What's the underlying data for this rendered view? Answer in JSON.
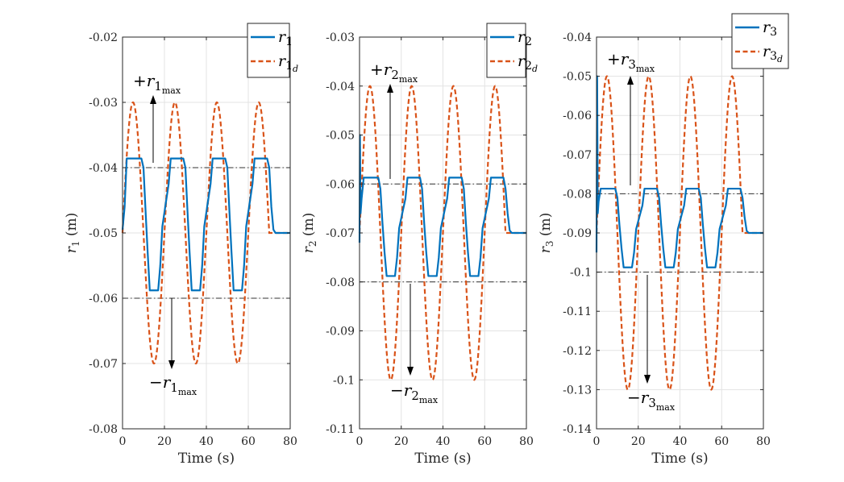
{
  "chart_data": [
    {
      "type": "line",
      "xlabel": "Time (s)",
      "ylabel": "r_1 (m)",
      "ylabel_var": "r",
      "ylabel_sub": "1",
      "ylabel_unit": "(m)",
      "xlim": [
        0,
        80
      ],
      "ylim": [
        -0.08,
        -0.02
      ],
      "xticks": [
        0,
        20,
        40,
        60,
        80
      ],
      "xtick_labels": [
        "0",
        "20",
        "40",
        "60",
        "80"
      ],
      "yticks": [
        -0.08,
        -0.07,
        -0.06,
        -0.05,
        -0.04,
        -0.03,
        -0.02
      ],
      "ytick_labels": [
        "-0.08",
        "-0.07",
        "-0.06",
        "-0.05",
        "-0.04",
        "-0.03",
        "-0.02"
      ],
      "grid": true,
      "legend_position": "top-right",
      "legend": [
        {
          "var": "r",
          "sub": "1",
          "subsub": "",
          "color": "#0072BD",
          "style": "solid"
        },
        {
          "var": "r",
          "sub": "1",
          "subsub": "d",
          "color": "#D95319",
          "style": "dashed"
        }
      ],
      "limits": {
        "upper": -0.04,
        "lower": -0.06
      },
      "annotations": [
        {
          "sign": "+",
          "var": "r",
          "sub": "1",
          "subsub": "max"
        },
        {
          "sign": "−",
          "var": "r",
          "sub": "1",
          "subsub": "max"
        }
      ],
      "series": [
        {
          "name": "r1",
          "color": "#0072BD",
          "style": "solid",
          "x": [
            0,
            1,
            2,
            9,
            10,
            11,
            12,
            13,
            17,
            18,
            19,
            22,
            23,
            24,
            29,
            30,
            31,
            32,
            33,
            37,
            38,
            39,
            42,
            43,
            44,
            49,
            50,
            51,
            52,
            53,
            57,
            58,
            59,
            62,
            63,
            64,
            69,
            70,
            71,
            72,
            73,
            80
          ],
          "y": [
            -0.0495,
            -0.046,
            -0.0386,
            -0.0386,
            -0.04,
            -0.0467,
            -0.053,
            -0.0588,
            -0.0588,
            -0.055,
            -0.049,
            -0.0425,
            -0.0386,
            -0.0386,
            -0.0386,
            -0.04,
            -0.0467,
            -0.053,
            -0.0588,
            -0.0588,
            -0.055,
            -0.049,
            -0.0425,
            -0.0386,
            -0.0386,
            -0.0386,
            -0.04,
            -0.0467,
            -0.053,
            -0.0588,
            -0.0588,
            -0.055,
            -0.049,
            -0.0425,
            -0.0386,
            -0.0386,
            -0.0386,
            -0.04,
            -0.046,
            -0.0495,
            -0.05,
            -0.05
          ]
        },
        {
          "name": "r1d",
          "color": "#D95319",
          "style": "dashed",
          "fn": {
            "center": -0.05,
            "amplitude": 0.02,
            "period": 20,
            "phase_max_at": 5,
            "t_end": 70,
            "final": -0.05
          }
        }
      ]
    },
    {
      "type": "line",
      "xlabel": "Time (s)",
      "ylabel": "r_2 (m)",
      "ylabel_var": "r",
      "ylabel_sub": "2",
      "ylabel_unit": "(m)",
      "xlim": [
        0,
        80
      ],
      "ylim": [
        -0.11,
        -0.03
      ],
      "xticks": [
        0,
        20,
        40,
        60,
        80
      ],
      "xtick_labels": [
        "0",
        "20",
        "40",
        "60",
        "80"
      ],
      "yticks": [
        -0.11,
        -0.1,
        -0.09,
        -0.08,
        -0.07,
        -0.06,
        -0.05,
        -0.04,
        -0.03
      ],
      "ytick_labels": [
        "-0.11",
        "-0.1",
        "-0.09",
        "-0.08",
        "-0.07",
        "-0.06",
        "-0.05",
        "-0.04",
        "-0.03"
      ],
      "grid": true,
      "legend_position": "top-right",
      "legend": [
        {
          "var": "r",
          "sub": "2",
          "subsub": "",
          "color": "#0072BD",
          "style": "solid"
        },
        {
          "var": "r",
          "sub": "2",
          "subsub": "d",
          "color": "#D95319",
          "style": "dashed"
        }
      ],
      "limits": {
        "upper": -0.06,
        "lower": -0.08
      },
      "annotations": [
        {
          "sign": "+",
          "var": "r",
          "sub": "2",
          "subsub": "max"
        },
        {
          "sign": "−",
          "var": "r",
          "sub": "2",
          "subsub": "max"
        }
      ],
      "series": [
        {
          "name": "r2",
          "color": "#0072BD",
          "style": "solid",
          "x": [
            0,
            0.2,
            0.5,
            1,
            2,
            9,
            10,
            11,
            12,
            13,
            17,
            18,
            19,
            22,
            23,
            24,
            29,
            30,
            31,
            32,
            33,
            37,
            38,
            39,
            42,
            43,
            44,
            49,
            50,
            51,
            52,
            53,
            57,
            58,
            59,
            62,
            63,
            64,
            69,
            70,
            71,
            72,
            73,
            80
          ],
          "y": [
            -0.072,
            -0.05,
            -0.066,
            -0.063,
            -0.0587,
            -0.0587,
            -0.061,
            -0.068,
            -0.074,
            -0.0788,
            -0.0788,
            -0.075,
            -0.069,
            -0.063,
            -0.0587,
            -0.0587,
            -0.0587,
            -0.061,
            -0.068,
            -0.074,
            -0.0788,
            -0.0788,
            -0.075,
            -0.069,
            -0.063,
            -0.0587,
            -0.0587,
            -0.0587,
            -0.061,
            -0.068,
            -0.074,
            -0.0788,
            -0.0788,
            -0.075,
            -0.069,
            -0.063,
            -0.0587,
            -0.0587,
            -0.0587,
            -0.061,
            -0.066,
            -0.0695,
            -0.07,
            -0.07
          ]
        },
        {
          "name": "r2d",
          "color": "#D95319",
          "style": "dashed",
          "fn": {
            "center": -0.07,
            "amplitude": 0.03,
            "period": 20,
            "phase_max_at": 5,
            "t_end": 70,
            "final": -0.07
          }
        }
      ]
    },
    {
      "type": "line",
      "xlabel": "Time (s)",
      "ylabel": "r_3 (m)",
      "ylabel_var": "r",
      "ylabel_sub": "3",
      "ylabel_unit": "(m)",
      "xlim": [
        0,
        80
      ],
      "ylim": [
        -0.14,
        -0.04
      ],
      "xticks": [
        0,
        20,
        40,
        60,
        80
      ],
      "xtick_labels": [
        "0",
        "20",
        "40",
        "60",
        "80"
      ],
      "yticks": [
        -0.14,
        -0.13,
        -0.12,
        -0.11,
        -0.1,
        -0.09,
        -0.08,
        -0.07,
        -0.06,
        -0.05,
        -0.04
      ],
      "ytick_labels": [
        "-0.14",
        "-0.13",
        "-0.12",
        "-0.11",
        "-0.1",
        "-0.09",
        "-0.08",
        "-0.07",
        "-0.06",
        "-0.05",
        "-0.04"
      ],
      "grid": true,
      "legend_position": "top-right",
      "legend": [
        {
          "var": "r",
          "sub": "3",
          "subsub": "",
          "color": "#0072BD",
          "style": "solid"
        },
        {
          "var": "r",
          "sub": "3",
          "subsub": "d",
          "color": "#D95319",
          "style": "dashed"
        }
      ],
      "limits": {
        "upper": -0.08,
        "lower": -0.1
      },
      "annotations": [
        {
          "sign": "+",
          "var": "r",
          "sub": "3",
          "subsub": "max"
        },
        {
          "sign": "−",
          "var": "r",
          "sub": "3",
          "subsub": "max"
        }
      ],
      "series": [
        {
          "name": "r3",
          "color": "#0072BD",
          "style": "solid",
          "x": [
            0,
            0.3,
            0.6,
            1,
            2,
            9,
            10,
            11,
            12,
            13,
            17,
            18,
            19,
            22,
            23,
            24,
            29,
            30,
            31,
            32,
            33,
            37,
            38,
            39,
            42,
            43,
            44,
            49,
            50,
            51,
            52,
            53,
            57,
            58,
            59,
            62,
            63,
            64,
            69,
            70,
            71,
            72,
            73,
            80
          ],
          "y": [
            -0.095,
            -0.05,
            -0.085,
            -0.082,
            -0.0787,
            -0.0787,
            -0.081,
            -0.088,
            -0.094,
            -0.0988,
            -0.0988,
            -0.095,
            -0.089,
            -0.083,
            -0.0787,
            -0.0787,
            -0.0787,
            -0.081,
            -0.088,
            -0.094,
            -0.0988,
            -0.0988,
            -0.095,
            -0.089,
            -0.083,
            -0.0787,
            -0.0787,
            -0.0787,
            -0.081,
            -0.088,
            -0.094,
            -0.0988,
            -0.0988,
            -0.095,
            -0.089,
            -0.083,
            -0.0787,
            -0.0787,
            -0.0787,
            -0.081,
            -0.086,
            -0.0895,
            -0.09,
            -0.09
          ]
        },
        {
          "name": "r3d",
          "color": "#D95319",
          "style": "dashed",
          "fn": {
            "center": -0.09,
            "amplitude": 0.04,
            "period": 20,
            "phase_max_at": 5,
            "t_end": 70,
            "final": -0.09
          }
        }
      ]
    }
  ]
}
